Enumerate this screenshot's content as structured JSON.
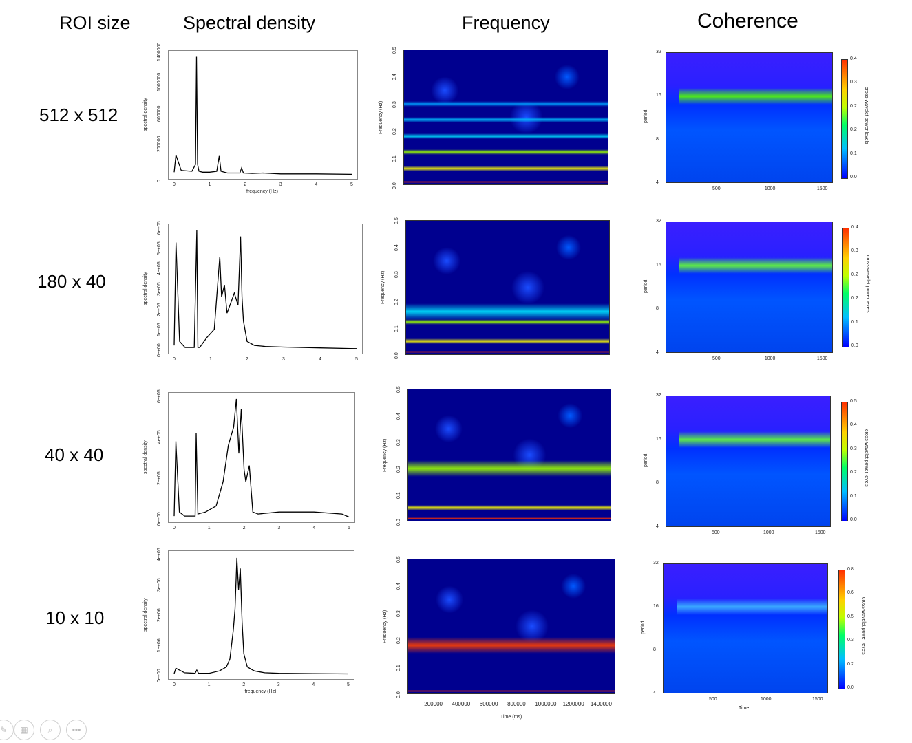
{
  "headers": {
    "roi": "ROI size",
    "spectral": "Spectral density",
    "frequency": "Frequency",
    "coherence": "Coherence"
  },
  "rows": [
    {
      "roi_label": "512 x 512",
      "spectral": {
        "ylabel": "spectral density",
        "yticks": [
          "0",
          "200000",
          "600000",
          "1000000",
          "1400000"
        ],
        "xticks": [
          "0",
          "1",
          "2",
          "3",
          "4",
          "5"
        ],
        "xlabel": "frequency (Hz)"
      },
      "frequency": {
        "ylabel": "Frequency (Hz)",
        "yticks": [
          "0.0",
          "0.1",
          "0.2",
          "0.3",
          "0.4",
          "0.5"
        ]
      },
      "coherence": {
        "ylabel": "period",
        "yticks": [
          "4",
          "8",
          "16",
          "32"
        ],
        "xticks": [
          "500",
          "1000",
          "1500"
        ],
        "cbar_ticks": [
          "0.0",
          "0.1",
          "0.2",
          "0.2",
          "0.3",
          "0.4"
        ],
        "cbar_label": "cross-wavelet power levels"
      }
    },
    {
      "roi_label": "180 x 40",
      "spectral": {
        "ylabel": "spectral density",
        "yticks": [
          "0e+00",
          "1e+05",
          "2e+05",
          "3e+05",
          "4e+05",
          "5e+05",
          "6e+05"
        ],
        "xticks": [
          "0",
          "1",
          "2",
          "3",
          "4",
          "5"
        ],
        "xlabel": ""
      },
      "frequency": {
        "ylabel": "Frequency (Hz)",
        "yticks": [
          "0.0",
          "0.1",
          "0.2",
          "0.3",
          "0.4",
          "0.5"
        ]
      },
      "coherence": {
        "ylabel": "period",
        "yticks": [
          "4",
          "8",
          "16",
          "32"
        ],
        "xticks": [
          "500",
          "1000",
          "1500"
        ],
        "cbar_ticks": [
          "0.0",
          "0.1",
          "0.2",
          "0.2",
          "0.3",
          "0.4"
        ],
        "cbar_label": "cross-wavelet power levels"
      }
    },
    {
      "roi_label": "40 x 40",
      "spectral": {
        "ylabel": "spectral density",
        "yticks": [
          "0e+00",
          "2e+05",
          "4e+05",
          "6e+05"
        ],
        "xticks": [
          "0",
          "1",
          "2",
          "3",
          "4",
          "5"
        ],
        "xlabel": ""
      },
      "frequency": {
        "ylabel": "Frequency (Hz)",
        "yticks": [
          "0.0",
          "0.1",
          "0.2",
          "0.3",
          "0.4",
          "0.5"
        ]
      },
      "coherence": {
        "ylabel": "period",
        "yticks": [
          "4",
          "8",
          "16",
          "32"
        ],
        "xticks": [
          "500",
          "1000",
          "1500"
        ],
        "cbar_ticks": [
          "0.0",
          "0.1",
          "0.2",
          "0.3",
          "0.4",
          "0.5"
        ],
        "cbar_label": "cross-wavelet power levels"
      }
    },
    {
      "roi_label": "10 x 10",
      "spectral": {
        "ylabel": "spectral density",
        "yticks": [
          "0e+00",
          "1e+06",
          "2e+06",
          "3e+06",
          "4e+06"
        ],
        "xticks": [
          "0",
          "1",
          "2",
          "3",
          "4",
          "5"
        ],
        "xlabel": "frequency (Hz)"
      },
      "frequency": {
        "ylabel": "Frequency (Hz)",
        "yticks": [
          "0.0",
          "0.1",
          "0.2",
          "0.3",
          "0.4",
          "0.5"
        ],
        "xticks": [
          "200000",
          "400000",
          "600000",
          "800000",
          "1000000",
          "1200000",
          "1400000"
        ],
        "xlabel": "Time (ms)"
      },
      "coherence": {
        "ylabel": "period",
        "yticks": [
          "4",
          "8",
          "16",
          "32"
        ],
        "xticks": [
          "500",
          "1000",
          "1500"
        ],
        "xlabel": "Time",
        "cbar_ticks": [
          "0.0",
          "0.2",
          "0.3",
          "0.5",
          "0.6",
          "0.8"
        ],
        "cbar_label": "cross-wavelet power levels"
      }
    }
  ],
  "chart_data": [
    {
      "type": "line",
      "title": "Spectral density",
      "subtitle": "512 x 512",
      "xlabel": "frequency (Hz)",
      "ylabel": "spectral density",
      "xlim": [
        0,
        5
      ],
      "ylim": [
        0,
        1400000
      ],
      "x": [
        0,
        0.05,
        0.2,
        0.5,
        0.6,
        0.63,
        0.66,
        0.7,
        0.8,
        1.0,
        1.2,
        1.27,
        1.32,
        1.5,
        1.85,
        1.9,
        1.95,
        2.2,
        2.5,
        3.0,
        4.0,
        5.0
      ],
      "series": [
        {
          "values": [
            30000,
            230000,
            50000,
            40000,
            120000,
            1380000,
            120000,
            40000,
            30000,
            30000,
            40000,
            220000,
            40000,
            20000,
            20000,
            80000,
            20000,
            15000,
            20000,
            10000,
            10000,
            5000
          ]
        }
      ]
    },
    {
      "type": "line",
      "title": "Spectral density",
      "subtitle": "180 x 40",
      "ylabel": "spectral density",
      "xlim": [
        0,
        5
      ],
      "ylim": [
        0,
        600000
      ],
      "x": [
        0,
        0.05,
        0.15,
        0.3,
        0.55,
        0.62,
        0.65,
        0.7,
        0.9,
        1.1,
        1.25,
        1.3,
        1.38,
        1.45,
        1.55,
        1.65,
        1.75,
        1.82,
        1.86,
        1.9,
        2.0,
        2.2,
        2.5,
        3.0,
        4.0,
        5.0
      ],
      "series": [
        {
          "values": [
            20000,
            530000,
            40000,
            10000,
            10000,
            590000,
            10000,
            10000,
            60000,
            100000,
            460000,
            260000,
            320000,
            180000,
            230000,
            280000,
            220000,
            560000,
            260000,
            140000,
            40000,
            20000,
            15000,
            12000,
            8000,
            4000
          ]
        }
      ]
    },
    {
      "type": "line",
      "title": "Spectral density",
      "subtitle": "40 x 40",
      "ylabel": "spectral density",
      "xlim": [
        0,
        5
      ],
      "ylim": [
        0,
        600000
      ],
      "x": [
        0,
        0.05,
        0.15,
        0.3,
        0.6,
        0.63,
        0.68,
        0.9,
        1.2,
        1.4,
        1.55,
        1.7,
        1.78,
        1.85,
        1.92,
        2.0,
        2.05,
        2.15,
        2.25,
        2.4,
        3.0,
        4.0,
        4.8,
        5.0
      ],
      "series": [
        {
          "values": [
            10000,
            380000,
            30000,
            10000,
            10000,
            420000,
            20000,
            30000,
            60000,
            180000,
            360000,
            450000,
            590000,
            320000,
            540000,
            240000,
            180000,
            260000,
            30000,
            20000,
            30000,
            30000,
            20000,
            5000
          ]
        }
      ]
    },
    {
      "type": "line",
      "title": "Spectral density",
      "subtitle": "10 x 10",
      "xlabel": "frequency (Hz)",
      "ylabel": "spectral density",
      "xlim": [
        0,
        5
      ],
      "ylim": [
        0,
        4500000
      ],
      "x": [
        0,
        0.05,
        0.3,
        0.6,
        0.65,
        0.7,
        1.0,
        1.3,
        1.5,
        1.6,
        1.7,
        1.75,
        1.8,
        1.85,
        1.9,
        1.95,
        2.0,
        2.1,
        2.3,
        2.6,
        3.0,
        4.0,
        5.0
      ],
      "series": [
        {
          "values": [
            50000,
            250000,
            80000,
            60000,
            180000,
            60000,
            60000,
            150000,
            300000,
            600000,
            1700000,
            2500000,
            4400000,
            3200000,
            4000000,
            2000000,
            800000,
            300000,
            150000,
            80000,
            60000,
            50000,
            40000
          ]
        }
      ]
    },
    {
      "type": "heatmap",
      "title": "Frequency",
      "subtitle": "512 x 512",
      "ylabel": "Frequency (Hz)",
      "ylim": [
        0,
        0.5
      ],
      "bands": [
        0.01,
        0.06,
        0.12,
        0.18,
        0.24,
        0.3
      ]
    },
    {
      "type": "heatmap",
      "title": "Frequency",
      "subtitle": "180 x 40",
      "ylabel": "Frequency (Hz)",
      "ylim": [
        0,
        0.5
      ],
      "bands": [
        0.01,
        0.05,
        0.12,
        0.16
      ]
    },
    {
      "type": "heatmap",
      "title": "Frequency",
      "subtitle": "40 x 40",
      "ylabel": "Frequency (Hz)",
      "ylim": [
        0,
        0.5
      ],
      "bands": [
        0.01,
        0.05,
        0.2
      ]
    },
    {
      "type": "heatmap",
      "title": "Frequency",
      "subtitle": "10 x 10",
      "xlabel": "Time (ms)",
      "ylabel": "Frequency (Hz)",
      "xlim": [
        0,
        1500000
      ],
      "ylim": [
        0,
        0.5
      ],
      "bands": [
        0.01,
        0.18
      ]
    },
    {
      "type": "heatmap",
      "title": "Coherence",
      "subtitle": "512 x 512",
      "ylabel": "period",
      "xlim": [
        0,
        1600
      ],
      "ylim": [
        4,
        32
      ],
      "color_range": [
        0,
        0.4
      ],
      "band_period": 16
    },
    {
      "type": "heatmap",
      "title": "Coherence",
      "subtitle": "180 x 40",
      "ylabel": "period",
      "xlim": [
        0,
        1600
      ],
      "ylim": [
        4,
        32
      ],
      "color_range": [
        0,
        0.4
      ],
      "band_period": 16
    },
    {
      "type": "heatmap",
      "title": "Coherence",
      "subtitle": "40 x 40",
      "ylabel": "period",
      "xlim": [
        0,
        1600
      ],
      "ylim": [
        4,
        32
      ],
      "color_range": [
        0,
        0.5
      ],
      "band_period": 16
    },
    {
      "type": "heatmap",
      "title": "Coherence",
      "subtitle": "10 x 10",
      "xlabel": "Time",
      "ylabel": "period",
      "xlim": [
        0,
        1600
      ],
      "ylim": [
        4,
        32
      ],
      "color_range": [
        0,
        0.8
      ],
      "band_period": 16
    }
  ]
}
